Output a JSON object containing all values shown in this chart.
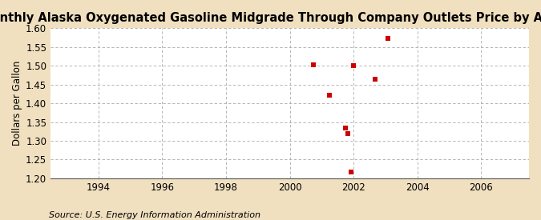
{
  "title": "Monthly Alaska Oxygenated Gasoline Midgrade Through Company Outlets Price by All Sellers",
  "ylabel": "Dollars per Gallon",
  "source": "Source: U.S. Energy Information Administration",
  "background_color": "#f0e0c0",
  "plot_bg_color": "#ffffff",
  "xlim": [
    1992.5,
    2007.5
  ],
  "ylim": [
    1.2,
    1.6
  ],
  "xticks": [
    1994,
    1996,
    1998,
    2000,
    2002,
    2004,
    2006
  ],
  "yticks": [
    1.2,
    1.25,
    1.3,
    1.35,
    1.4,
    1.45,
    1.5,
    1.55,
    1.6
  ],
  "data_x": [
    2000.75,
    2001.25,
    2001.75,
    2001.83,
    2001.92,
    2002.0,
    2002.67,
    2003.08
  ],
  "data_y": [
    1.502,
    1.422,
    1.335,
    1.32,
    1.216,
    1.501,
    1.464,
    1.573
  ],
  "marker_color": "#cc0000",
  "marker_size": 5,
  "grid_color": "#aaaaaa",
  "title_fontsize": 10.5,
  "tick_fontsize": 8.5,
  "ylabel_fontsize": 8.5,
  "source_fontsize": 8
}
